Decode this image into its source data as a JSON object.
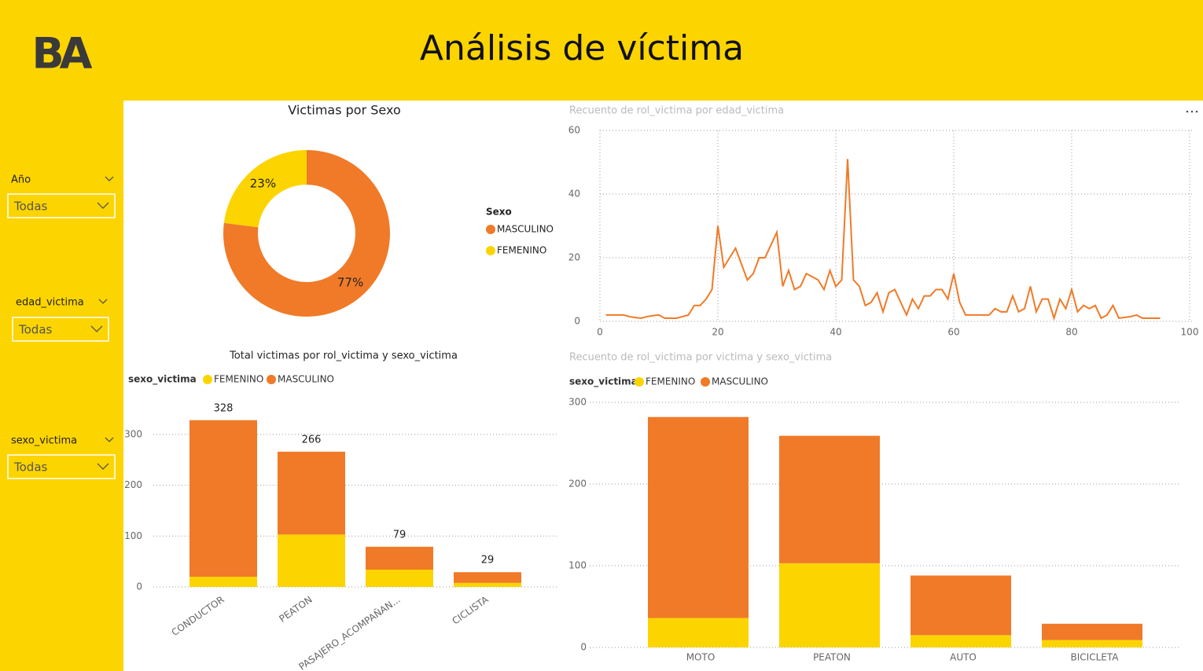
{
  "header": {
    "logo": "BA",
    "title": "Análisis de víctima"
  },
  "filters": [
    {
      "label": "Año",
      "value": "Todas"
    },
    {
      "label": "edad_victima",
      "value": "Todas"
    },
    {
      "label": "sexo_victima",
      "value": "Todas"
    }
  ],
  "chart_data": [
    {
      "type": "donut",
      "title": "Victimas por Sexo",
      "legend_title": "Sexo",
      "categories": [
        "MASCULINO",
        "FEMENINO"
      ],
      "values": [
        77,
        23
      ],
      "value_labels": [
        "77%",
        "23%"
      ],
      "colors": [
        "#f07a28",
        "#fcd400"
      ]
    },
    {
      "type": "line",
      "title": "Recuento de rol_victima por edad_victima",
      "color": "#f07a28",
      "grid": true,
      "x": [
        1,
        2,
        3,
        4,
        5,
        6,
        7,
        8,
        9,
        10,
        11,
        12,
        13,
        14,
        15,
        16,
        17,
        18,
        19,
        20,
        21,
        22,
        23,
        24,
        25,
        26,
        27,
        28,
        29,
        30,
        31,
        32,
        33,
        34,
        35,
        36,
        37,
        38,
        39,
        40,
        41,
        42,
        43,
        44,
        45,
        46,
        47,
        48,
        49,
        50,
        51,
        52,
        53,
        54,
        55,
        56,
        57,
        58,
        59,
        60,
        61,
        62,
        63,
        64,
        65,
        66,
        67,
        68,
        69,
        70,
        71,
        72,
        73,
        74,
        75,
        76,
        77,
        78,
        79,
        80,
        81,
        82,
        83,
        84,
        85,
        86,
        87,
        88,
        90,
        91,
        92,
        95
      ],
      "values": [
        2,
        2,
        2,
        2,
        1.5,
        1.2,
        1,
        1.5,
        1.8,
        2,
        1,
        1,
        1,
        1.5,
        2,
        5,
        5,
        7,
        10,
        30,
        17,
        20,
        23,
        18,
        13,
        15,
        20,
        20,
        24,
        28,
        11,
        16,
        10,
        11,
        15,
        14,
        13,
        10,
        16,
        11,
        13,
        51,
        13,
        11,
        5,
        6,
        9,
        3,
        9,
        10,
        6,
        2,
        7,
        4,
        8,
        8,
        10,
        10,
        7,
        15,
        6,
        2,
        2,
        2,
        2,
        2,
        4,
        3,
        3,
        8,
        3,
        4,
        11,
        3,
        7,
        7,
        1,
        7,
        4,
        10,
        3,
        5,
        4,
        5,
        1,
        2,
        5,
        1,
        1.5,
        2,
        1,
        1
      ],
      "xlim": [
        0,
        100
      ],
      "xticks": [
        0,
        20,
        40,
        60,
        80,
        100
      ],
      "ylim": [
        0,
        60
      ],
      "yticks": [
        0,
        20,
        40,
        60
      ]
    },
    {
      "type": "stacked-bar",
      "title": "Total victimas por rol_victima y sexo_victima",
      "legend_title": "sexo_victima",
      "categories": [
        "CONDUCTOR",
        "PEATON",
        "PASAJERO_ACOMPAÑAN...",
        "CICLISTA"
      ],
      "series": [
        {
          "name": "FEMENINO",
          "color": "#fcd400",
          "values": [
            20,
            103,
            34,
            8
          ]
        },
        {
          "name": "MASCULINO",
          "color": "#f07a28",
          "values": [
            308,
            163,
            45,
            21
          ]
        }
      ],
      "total_labels": [
        328,
        266,
        79,
        29
      ],
      "grid": true,
      "ylim": [
        0,
        340
      ],
      "yticks": [
        0,
        100,
        200,
        300
      ]
    },
    {
      "type": "stacked-bar",
      "title": "Recuento de rol_victima por victima y sexo_victima",
      "legend_title": "sexo_victima",
      "categories": [
        "MOTO",
        "PEATON",
        "AUTO",
        "BICICLETA"
      ],
      "series": [
        {
          "name": "FEMENINO",
          "color": "#fcd400",
          "values": [
            36,
            103,
            15,
            9
          ]
        },
        {
          "name": "MASCULINO",
          "color": "#f07a28",
          "values": [
            246,
            156,
            73,
            20
          ]
        }
      ],
      "grid": true,
      "ylim": [
        0,
        300
      ],
      "yticks": [
        0,
        100,
        200,
        300
      ]
    }
  ]
}
